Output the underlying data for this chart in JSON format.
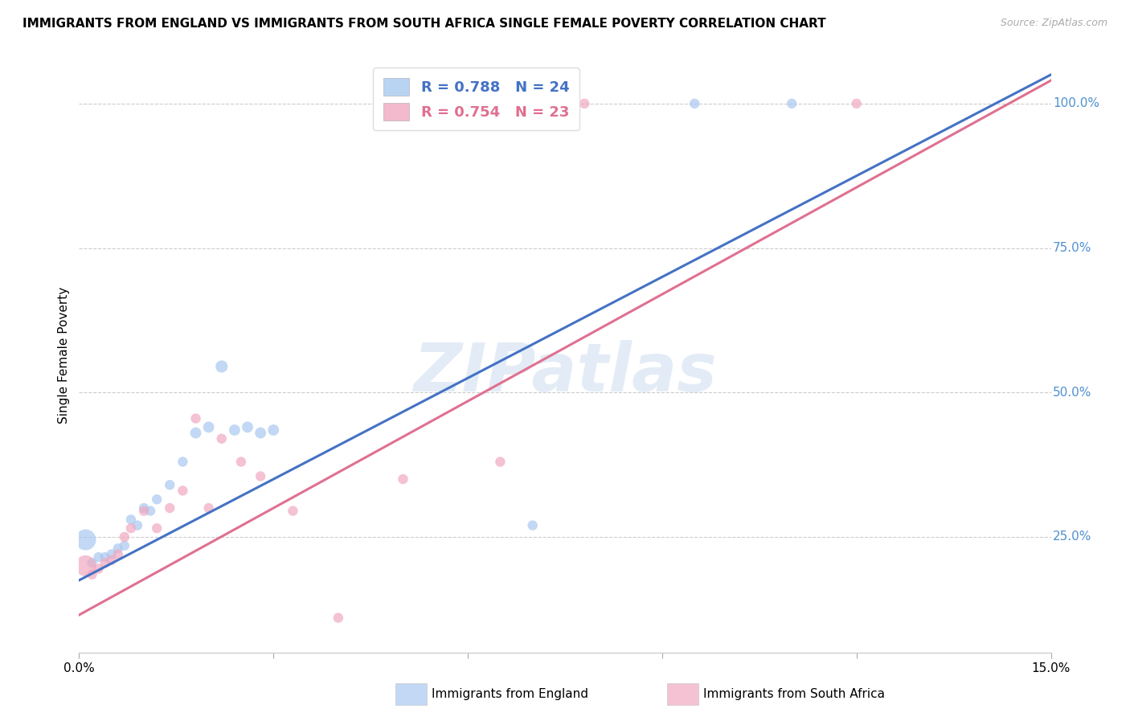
{
  "title": "IMMIGRANTS FROM ENGLAND VS IMMIGRANTS FROM SOUTH AFRICA SINGLE FEMALE POVERTY CORRELATION CHART",
  "source": "Source: ZipAtlas.com",
  "ylabel": "Single Female Poverty",
  "legend_label_blue": "Immigrants from England",
  "legend_label_pink": "Immigrants from South Africa",
  "legend_r_blue": "R = 0.788",
  "legend_n_blue": "N = 24",
  "legend_r_pink": "R = 0.754",
  "legend_n_pink": "N = 23",
  "blue_scatter_color": "#a8c8f0",
  "pink_scatter_color": "#f0a8c0",
  "line_blue": "#4472c4",
  "line_pink": "#e07090",
  "right_tick_color": "#5090d0",
  "england_x": [
    0.001,
    0.002,
    0.003,
    0.004,
    0.005,
    0.006,
    0.007,
    0.008,
    0.009,
    0.01,
    0.011,
    0.012,
    0.014,
    0.016,
    0.018,
    0.02,
    0.022,
    0.024,
    0.026,
    0.028,
    0.03,
    0.07,
    0.095,
    0.11
  ],
  "england_y": [
    0.245,
    0.205,
    0.215,
    0.215,
    0.22,
    0.23,
    0.235,
    0.28,
    0.27,
    0.3,
    0.295,
    0.315,
    0.34,
    0.38,
    0.43,
    0.44,
    0.545,
    0.435,
    0.44,
    0.43,
    0.435,
    0.27,
    1.0,
    1.0
  ],
  "england_sizes": [
    350,
    80,
    80,
    80,
    80,
    80,
    80,
    80,
    80,
    80,
    80,
    80,
    80,
    80,
    100,
    100,
    120,
    100,
    100,
    100,
    100,
    80,
    80,
    80
  ],
  "sa_x": [
    0.001,
    0.002,
    0.003,
    0.004,
    0.005,
    0.006,
    0.007,
    0.008,
    0.01,
    0.012,
    0.014,
    0.016,
    0.018,
    0.02,
    0.022,
    0.025,
    0.028,
    0.033,
    0.04,
    0.05,
    0.065,
    0.078,
    0.12
  ],
  "sa_y": [
    0.2,
    0.185,
    0.195,
    0.205,
    0.21,
    0.22,
    0.25,
    0.265,
    0.295,
    0.265,
    0.3,
    0.33,
    0.455,
    0.3,
    0.42,
    0.38,
    0.355,
    0.295,
    0.11,
    0.35,
    0.38,
    1.0,
    1.0
  ],
  "sa_sizes": [
    350,
    80,
    80,
    80,
    80,
    80,
    80,
    80,
    80,
    80,
    80,
    80,
    80,
    80,
    80,
    80,
    80,
    80,
    80,
    80,
    80,
    80,
    80
  ],
  "xlim": [
    0.0,
    0.15
  ],
  "ylim": [
    0.05,
    1.08
  ],
  "x_ticks": [
    0.0,
    0.03,
    0.06,
    0.09,
    0.12,
    0.15
  ],
  "right_y_ticks": [
    0.25,
    0.5,
    0.75,
    1.0
  ],
  "right_y_labels": [
    "25.0%",
    "50.0%",
    "75.0%",
    "100.0%"
  ],
  "blue_line_x0": 0.0,
  "blue_line_x1": 0.15,
  "blue_line_y0": 0.175,
  "blue_line_y1": 1.05,
  "pink_line_x0": 0.0,
  "pink_line_x1": 0.15,
  "pink_line_y0": 0.115,
  "pink_line_y1": 1.04
}
